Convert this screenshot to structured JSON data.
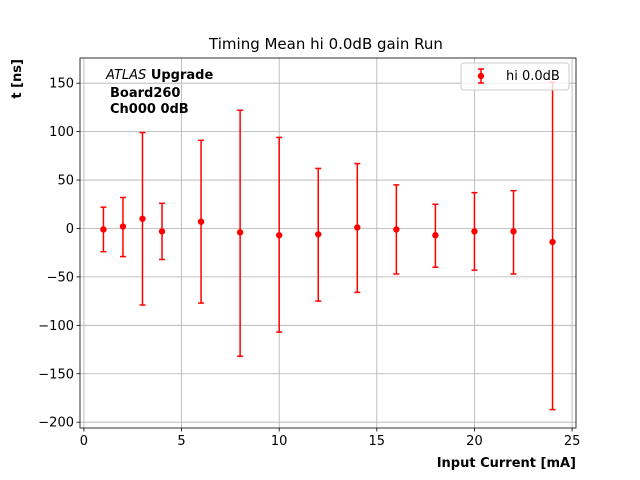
{
  "chart_data": {
    "type": "scatter",
    "title": "Timing Mean hi 0.0dB gain Run",
    "xlabel": "Input Current [mA]",
    "ylabel": "t [ns]",
    "xlim": [
      -0.2,
      25.2
    ],
    "ylim": [
      -206,
      176
    ],
    "xticks": [
      0,
      5,
      10,
      15,
      20,
      25
    ],
    "yticks": [
      -200,
      -150,
      -100,
      -50,
      0,
      50,
      100,
      150
    ],
    "xtick_labels": [
      "0",
      "5",
      "10",
      "15",
      "20",
      "25"
    ],
    "ytick_labels": [
      "−200",
      "−150",
      "−100",
      "−50",
      "0",
      "50",
      "100",
      "150"
    ],
    "grid": true,
    "legend_position": "top-right",
    "annotation": {
      "atlas_italic": "ATLAS",
      "atlas_bold": "Upgrade",
      "line2": "Board260",
      "line3": "Ch000 0dB"
    },
    "series": [
      {
        "name": "hi 0.0dB",
        "color": "#ff0000",
        "x": [
          1,
          2,
          3,
          4,
          6,
          8,
          10,
          12,
          14,
          16,
          18,
          20,
          22,
          24
        ],
        "y": [
          -1,
          2,
          10,
          -3,
          7,
          -4,
          -7,
          -6,
          1,
          -1,
          -7,
          -3,
          -3,
          -14
        ],
        "yerr_low": [
          -24,
          -29,
          -79,
          -32,
          -77,
          -132,
          -107,
          -75,
          -66,
          -47,
          -40,
          -43,
          -47,
          -187
        ],
        "yerr_high": [
          22,
          32,
          99,
          26,
          91,
          122,
          94,
          62,
          67,
          45,
          25,
          37,
          39,
          151
        ]
      }
    ]
  }
}
